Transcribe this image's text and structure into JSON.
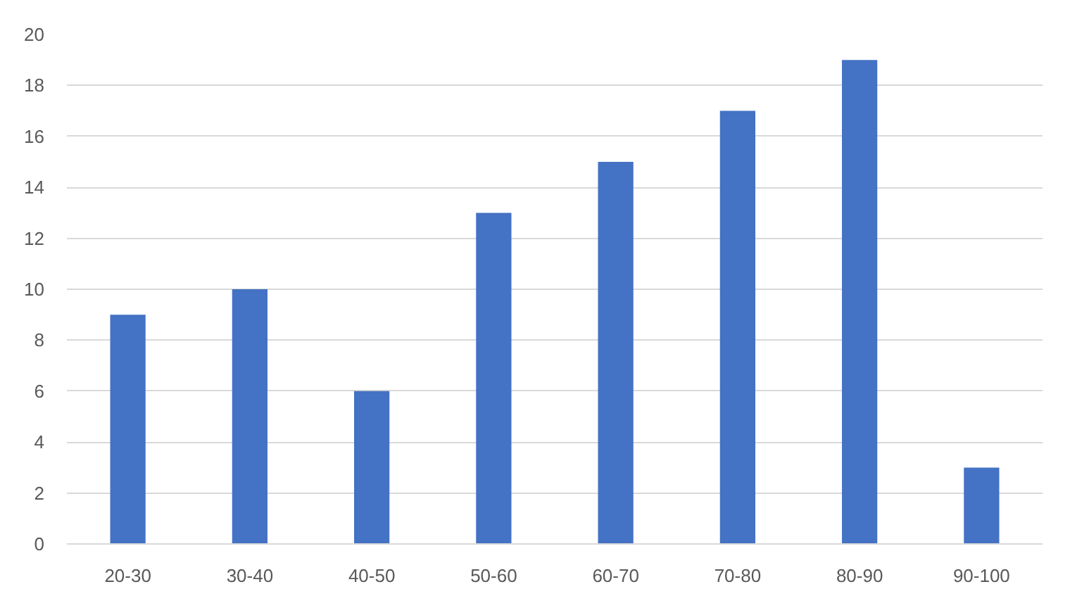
{
  "chart_data": {
    "type": "bar",
    "categories": [
      "20-30",
      "30-40",
      "40-50",
      "50-60",
      "60-70",
      "70-80",
      "80-90",
      "90-100"
    ],
    "values": [
      9,
      10,
      6,
      13,
      15,
      17,
      19,
      3
    ],
    "color": "#4472c4",
    "ylim": [
      0,
      20
    ],
    "yticks": [
      0,
      2,
      4,
      6,
      8,
      10,
      12,
      14,
      16,
      18,
      20
    ],
    "grid": "y"
  }
}
